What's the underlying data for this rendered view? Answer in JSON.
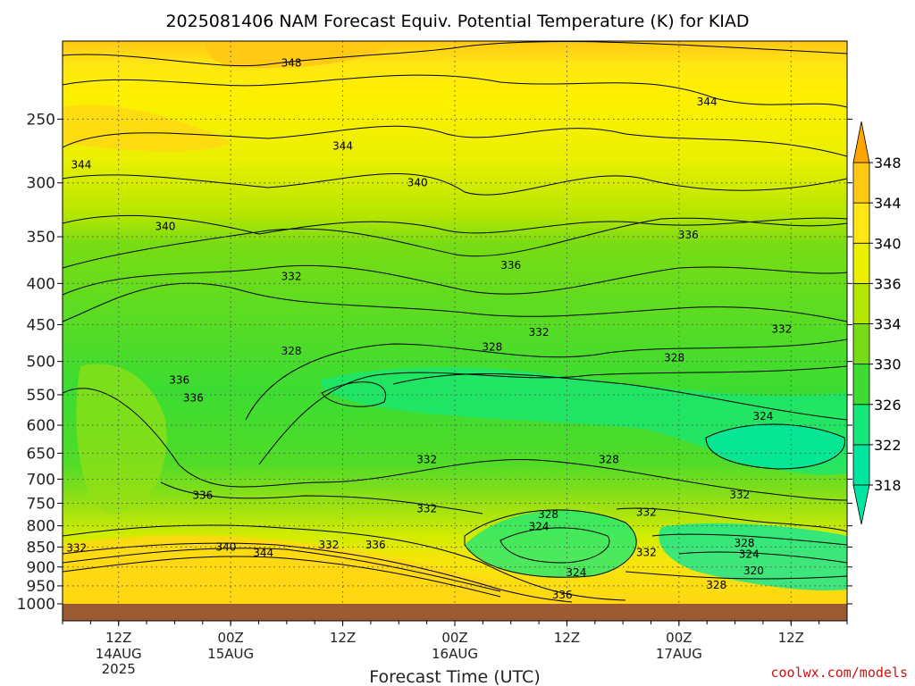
{
  "title": "2025081406 NAM Forecast Equiv. Potential Temperature (K) for KIAD",
  "credit": "coolwx.com/models",
  "colors": {
    "credit": "#cc1111",
    "ground": "#9b5a32",
    "colorbar": [
      "#00e6a0",
      "#14e87a",
      "#3cdc32",
      "#78dc14",
      "#b4e600",
      "#eaf000",
      "#ffe614",
      "#ffc814"
    ]
  },
  "chart_data": {
    "type": "heatmap",
    "title": "2025081406 NAM Forecast Equiv. Potential Temperature (K) for KIAD",
    "xlabel": "Forecast Time (UTC)",
    "ylabel": "",
    "x_ticks": [
      {
        "label": "12Z",
        "sub": [
          "14AUG",
          "2025"
        ],
        "hour": 6
      },
      {
        "label": "00Z",
        "sub": [
          "15AUG"
        ],
        "hour": 18
      },
      {
        "label": "12Z",
        "sub": [],
        "hour": 30
      },
      {
        "label": "00Z",
        "sub": [
          "16AUG"
        ],
        "hour": 42
      },
      {
        "label": "12Z",
        "sub": [],
        "hour": 54
      },
      {
        "label": "00Z",
        "sub": [
          "17AUG"
        ],
        "hour": 66
      },
      {
        "label": "12Z",
        "sub": [],
        "hour": 78
      }
    ],
    "x_range_hours": [
      0,
      84
    ],
    "y_ticks": [
      250,
      300,
      350,
      400,
      450,
      500,
      550,
      600,
      650,
      700,
      750,
      800,
      850,
      900,
      950,
      1000
    ],
    "y_range_hpa": [
      200,
      1000
    ],
    "log_pressure_axis": true,
    "grid": true,
    "colorbar": {
      "levels": [
        318,
        322,
        326,
        330,
        334,
        336,
        340,
        344,
        348
      ],
      "labels": [
        "318",
        "322",
        "326",
        "330",
        "334",
        "336",
        "340",
        "344",
        "348"
      ],
      "placement": "right"
    },
    "contour_labels": [
      {
        "text": "348",
        "hour": 24.5,
        "p": 213
      },
      {
        "text": "344",
        "hour": 69,
        "p": 238
      },
      {
        "text": "344",
        "hour": 30,
        "p": 270
      },
      {
        "text": "344",
        "hour": 2,
        "p": 285
      },
      {
        "text": "340",
        "hour": 38,
        "p": 300
      },
      {
        "text": "340",
        "hour": 11,
        "p": 340
      },
      {
        "text": "336",
        "hour": 67,
        "p": 348
      },
      {
        "text": "336",
        "hour": 48,
        "p": 380
      },
      {
        "text": "332",
        "hour": 24.5,
        "p": 392
      },
      {
        "text": "332",
        "hour": 51,
        "p": 460
      },
      {
        "text": "332",
        "hour": 77,
        "p": 456
      },
      {
        "text": "328",
        "hour": 24.5,
        "p": 485
      },
      {
        "text": "328",
        "hour": 46,
        "p": 480
      },
      {
        "text": "328",
        "hour": 65.5,
        "p": 495
      },
      {
        "text": "336",
        "hour": 12.5,
        "p": 527
      },
      {
        "text": "336",
        "hour": 14,
        "p": 555
      },
      {
        "text": "324",
        "hour": 75,
        "p": 585
      },
      {
        "text": "328",
        "hour": 58.5,
        "p": 662
      },
      {
        "text": "332",
        "hour": 39,
        "p": 662
      },
      {
        "text": "336",
        "hour": 15,
        "p": 733
      },
      {
        "text": "332",
        "hour": 72.5,
        "p": 732
      },
      {
        "text": "332",
        "hour": 39,
        "p": 762
      },
      {
        "text": "328",
        "hour": 52,
        "p": 775
      },
      {
        "text": "332",
        "hour": 62.5,
        "p": 770
      },
      {
        "text": "324",
        "hour": 51,
        "p": 802
      },
      {
        "text": "328",
        "hour": 73,
        "p": 840
      },
      {
        "text": "332",
        "hour": 1.5,
        "p": 852
      },
      {
        "text": "340",
        "hour": 17.5,
        "p": 850
      },
      {
        "text": "332",
        "hour": 28.5,
        "p": 845
      },
      {
        "text": "336",
        "hour": 33.5,
        "p": 845
      },
      {
        "text": "344",
        "hour": 21.5,
        "p": 865
      },
      {
        "text": "332",
        "hour": 62.5,
        "p": 863
      },
      {
        "text": "324",
        "hour": 73.5,
        "p": 868
      },
      {
        "text": "320",
        "hour": 74,
        "p": 910
      },
      {
        "text": "324",
        "hour": 55,
        "p": 915
      },
      {
        "text": "328",
        "hour": 70,
        "p": 948
      },
      {
        "text": "336",
        "hour": 53.5,
        "p": 975
      }
    ]
  }
}
